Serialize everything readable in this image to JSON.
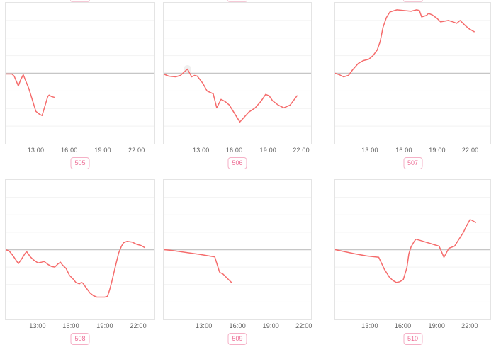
{
  "style": {
    "line_color": "#f56c6c",
    "baseline_color": "#c6c6c6",
    "grid_color": "#f2f2f2",
    "border_color": "#e4e4e4",
    "tick_color": "#5e5e5e",
    "badge_text_color": "#ed6d95",
    "badge_border_color": "#f5b0c6"
  },
  "chart_data": [
    {
      "badge": "505",
      "type": "line",
      "x_ticks": [
        {
          "label": "13:00",
          "pos": 0.205
        },
        {
          "label": "16:00",
          "pos": 0.428
        },
        {
          "label": "19:00",
          "pos": 0.651
        },
        {
          "label": "22:00",
          "pos": 0.876
        }
      ],
      "y_baseline": 0,
      "ylim": [
        -1,
        1
      ],
      "points": [
        [
          0.0,
          -0.01
        ],
        [
          0.042,
          -0.01
        ],
        [
          0.057,
          -0.04
        ],
        [
          0.085,
          -0.18
        ],
        [
          0.099,
          -0.1
        ],
        [
          0.118,
          -0.02
        ],
        [
          0.156,
          -0.22
        ],
        [
          0.203,
          -0.54
        ],
        [
          0.226,
          -0.58
        ],
        [
          0.245,
          -0.6
        ],
        [
          0.283,
          -0.33
        ],
        [
          0.292,
          -0.31
        ],
        [
          0.307,
          -0.33
        ],
        [
          0.325,
          -0.34
        ]
      ]
    },
    {
      "badge": "506",
      "type": "line",
      "x_ticks": [
        {
          "label": "13:00",
          "pos": 0.256
        },
        {
          "label": "16:00",
          "pos": 0.479
        },
        {
          "label": "19:00",
          "pos": 0.706
        },
        {
          "label": "22:00",
          "pos": 0.929
        }
      ],
      "y_baseline": 0,
      "ylim": [
        -1,
        1
      ],
      "marker": {
        "x": 0.161,
        "v": 0.06
      },
      "points": [
        [
          0.0,
          -0.01
        ],
        [
          0.033,
          -0.04
        ],
        [
          0.081,
          -0.05
        ],
        [
          0.114,
          -0.03
        ],
        [
          0.161,
          0.06
        ],
        [
          0.19,
          -0.05
        ],
        [
          0.209,
          -0.03
        ],
        [
          0.228,
          -0.04
        ],
        [
          0.265,
          -0.14
        ],
        [
          0.294,
          -0.25
        ],
        [
          0.336,
          -0.29
        ],
        [
          0.36,
          -0.49
        ],
        [
          0.389,
          -0.37
        ],
        [
          0.417,
          -0.4
        ],
        [
          0.445,
          -0.45
        ],
        [
          0.517,
          -0.69
        ],
        [
          0.578,
          -0.55
        ],
        [
          0.621,
          -0.49
        ],
        [
          0.659,
          -0.4
        ],
        [
          0.692,
          -0.3
        ],
        [
          0.716,
          -0.32
        ],
        [
          0.739,
          -0.39
        ],
        [
          0.777,
          -0.45
        ],
        [
          0.815,
          -0.49
        ],
        [
          0.858,
          -0.45
        ],
        [
          0.905,
          -0.32
        ]
      ]
    },
    {
      "badge": "507",
      "type": "line",
      "x_ticks": [
        {
          "label": "13:00",
          "pos": 0.226
        },
        {
          "label": "16:00",
          "pos": 0.443
        },
        {
          "label": "19:00",
          "pos": 0.656
        },
        {
          "label": "22:00",
          "pos": 0.867
        }
      ],
      "y_baseline": 0,
      "ylim": [
        -1,
        1
      ],
      "points": [
        [
          0.0,
          0.0
        ],
        [
          0.027,
          -0.02
        ],
        [
          0.054,
          -0.05
        ],
        [
          0.086,
          -0.03
        ],
        [
          0.113,
          0.05
        ],
        [
          0.149,
          0.14
        ],
        [
          0.181,
          0.18
        ],
        [
          0.217,
          0.2
        ],
        [
          0.244,
          0.25
        ],
        [
          0.271,
          0.33
        ],
        [
          0.29,
          0.45
        ],
        [
          0.308,
          0.65
        ],
        [
          0.33,
          0.79
        ],
        [
          0.353,
          0.87
        ],
        [
          0.398,
          0.9
        ],
        [
          0.443,
          0.89
        ],
        [
          0.489,
          0.88
        ],
        [
          0.525,
          0.9
        ],
        [
          0.543,
          0.89
        ],
        [
          0.557,
          0.8
        ],
        [
          0.588,
          0.82
        ],
        [
          0.602,
          0.85
        ],
        [
          0.624,
          0.83
        ],
        [
          0.656,
          0.78
        ],
        [
          0.679,
          0.73
        ],
        [
          0.706,
          0.74
        ],
        [
          0.729,
          0.75
        ],
        [
          0.76,
          0.73
        ],
        [
          0.783,
          0.71
        ],
        [
          0.805,
          0.75
        ],
        [
          0.837,
          0.68
        ],
        [
          0.864,
          0.63
        ],
        [
          0.896,
          0.59
        ]
      ]
    },
    {
      "badge": "508",
      "type": "line",
      "x_ticks": [
        {
          "label": "13:00",
          "pos": 0.217
        },
        {
          "label": "16:00",
          "pos": 0.439
        },
        {
          "label": "19:00",
          "pos": 0.665
        },
        {
          "label": "22:00",
          "pos": 0.887
        }
      ],
      "y_baseline": 0,
      "ylim": [
        -1,
        1
      ],
      "points": [
        [
          0.0,
          0.0
        ],
        [
          0.024,
          -0.02
        ],
        [
          0.047,
          -0.08
        ],
        [
          0.085,
          -0.2
        ],
        [
          0.108,
          -0.13
        ],
        [
          0.132,
          -0.05
        ],
        [
          0.142,
          -0.03
        ],
        [
          0.165,
          -0.1
        ],
        [
          0.189,
          -0.15
        ],
        [
          0.217,
          -0.19
        ],
        [
          0.241,
          -0.18
        ],
        [
          0.259,
          -0.17
        ],
        [
          0.283,
          -0.21
        ],
        [
          0.307,
          -0.24
        ],
        [
          0.33,
          -0.25
        ],
        [
          0.354,
          -0.2
        ],
        [
          0.368,
          -0.18
        ],
        [
          0.382,
          -0.22
        ],
        [
          0.406,
          -0.27
        ],
        [
          0.429,
          -0.37
        ],
        [
          0.453,
          -0.42
        ],
        [
          0.472,
          -0.47
        ],
        [
          0.495,
          -0.49
        ],
        [
          0.509,
          -0.47
        ],
        [
          0.519,
          -0.48
        ],
        [
          0.542,
          -0.55
        ],
        [
          0.566,
          -0.62
        ],
        [
          0.59,
          -0.66
        ],
        [
          0.613,
          -0.68
        ],
        [
          0.642,
          -0.68
        ],
        [
          0.665,
          -0.68
        ],
        [
          0.684,
          -0.67
        ],
        [
          0.698,
          -0.58
        ],
        [
          0.712,
          -0.47
        ],
        [
          0.736,
          -0.25
        ],
        [
          0.759,
          -0.05
        ],
        [
          0.778,
          0.05
        ],
        [
          0.792,
          0.1
        ],
        [
          0.816,
          0.12
        ],
        [
          0.849,
          0.11
        ],
        [
          0.877,
          0.08
        ],
        [
          0.91,
          0.06
        ],
        [
          0.934,
          0.03
        ]
      ]
    },
    {
      "badge": "509",
      "type": "line",
      "x_ticks": [
        {
          "label": "13:00",
          "pos": 0.275
        },
        {
          "label": "16:00",
          "pos": 0.501
        },
        {
          "label": "19:00",
          "pos": 0.725
        },
        {
          "label": "22:00",
          "pos": 0.947
        }
      ],
      "y_baseline": 0,
      "ylim": [
        -1,
        1
      ],
      "points": [
        [
          0.0,
          0.0
        ],
        [
          0.052,
          -0.01
        ],
        [
          0.251,
          -0.07
        ],
        [
          0.337,
          -0.1
        ],
        [
          0.346,
          -0.1
        ],
        [
          0.379,
          -0.32
        ],
        [
          0.384,
          -0.33
        ],
        [
          0.403,
          -0.35
        ],
        [
          0.441,
          -0.43
        ],
        [
          0.46,
          -0.47
        ]
      ]
    },
    {
      "badge": "510",
      "type": "line",
      "x_ticks": [
        {
          "label": "13:00",
          "pos": 0.226
        },
        {
          "label": "16:00",
          "pos": 0.437
        },
        {
          "label": "19:00",
          "pos": 0.653
        },
        {
          "label": "22:00",
          "pos": 0.864
        }
      ],
      "y_baseline": 0,
      "ylim": [
        -1,
        1
      ],
      "points": [
        [
          0.0,
          0.0
        ],
        [
          0.127,
          -0.06
        ],
        [
          0.204,
          -0.09
        ],
        [
          0.281,
          -0.11
        ],
        [
          0.317,
          -0.28
        ],
        [
          0.348,
          -0.39
        ],
        [
          0.371,
          -0.44
        ],
        [
          0.394,
          -0.47
        ],
        [
          0.416,
          -0.46
        ],
        [
          0.439,
          -0.43
        ],
        [
          0.462,
          -0.26
        ],
        [
          0.475,
          -0.06
        ],
        [
          0.489,
          0.04
        ],
        [
          0.507,
          0.11
        ],
        [
          0.52,
          0.15
        ],
        [
          0.552,
          0.13
        ],
        [
          0.611,
          0.09
        ],
        [
          0.656,
          0.06
        ],
        [
          0.67,
          0.05
        ],
        [
          0.701,
          -0.11
        ],
        [
          0.733,
          0.02
        ],
        [
          0.756,
          0.04
        ],
        [
          0.769,
          0.05
        ],
        [
          0.801,
          0.16
        ],
        [
          0.824,
          0.24
        ],
        [
          0.846,
          0.34
        ],
        [
          0.869,
          0.43
        ],
        [
          0.882,
          0.42
        ],
        [
          0.905,
          0.39
        ]
      ]
    }
  ]
}
